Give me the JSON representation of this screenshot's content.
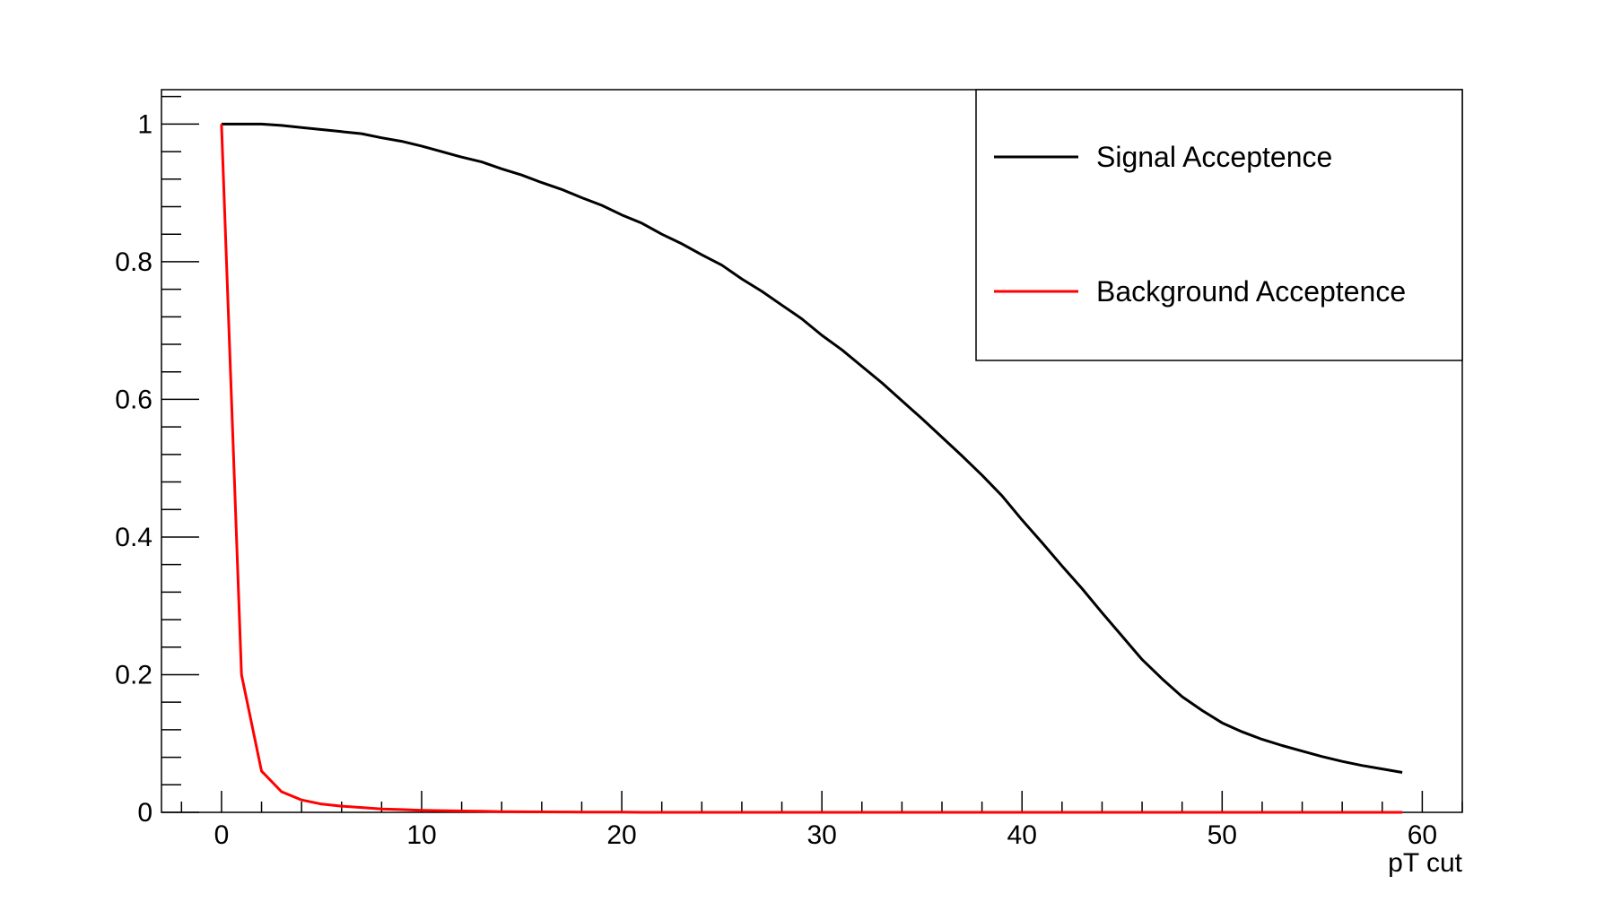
{
  "chart_data": {
    "type": "line",
    "title": "",
    "xlabel": "pT cut",
    "ylabel": "",
    "xlim": [
      -3,
      62
    ],
    "ylim": [
      0,
      1.05
    ],
    "grid": false,
    "legend_position": "top-right",
    "x_ticks": [
      "0",
      "10",
      "20",
      "30",
      "40",
      "50",
      "60"
    ],
    "y_ticks": [
      "0",
      "0.2",
      "0.4",
      "0.6",
      "0.8",
      "1"
    ],
    "x": [
      0,
      1,
      2,
      3,
      4,
      5,
      6,
      7,
      8,
      9,
      10,
      11,
      12,
      13,
      14,
      15,
      16,
      17,
      18,
      19,
      20,
      21,
      22,
      23,
      24,
      25,
      26,
      27,
      28,
      29,
      30,
      31,
      32,
      33,
      34,
      35,
      36,
      37,
      38,
      39,
      40,
      41,
      42,
      43,
      44,
      45,
      46,
      47,
      48,
      49,
      50,
      51,
      52,
      53,
      54,
      55,
      56,
      57,
      58,
      59
    ],
    "series": [
      {
        "name": "Signal Acceptence",
        "color": "#000000",
        "values": [
          1.0,
          1.0,
          1.0,
          0.998,
          0.995,
          0.992,
          0.989,
          0.986,
          0.98,
          0.975,
          0.968,
          0.96,
          0.952,
          0.945,
          0.935,
          0.926,
          0.915,
          0.905,
          0.893,
          0.882,
          0.868,
          0.856,
          0.84,
          0.826,
          0.81,
          0.795,
          0.775,
          0.757,
          0.737,
          0.717,
          0.693,
          0.672,
          0.648,
          0.624,
          0.598,
          0.572,
          0.545,
          0.518,
          0.49,
          0.46,
          0.425,
          0.392,
          0.358,
          0.325,
          0.29,
          0.256,
          0.222,
          0.194,
          0.168,
          0.148,
          0.13,
          0.117,
          0.106,
          0.097,
          0.089,
          0.081,
          0.074,
          0.068,
          0.063,
          0.058
        ]
      },
      {
        "name": "Background Acceptence",
        "color": "#ff0000",
        "values": [
          1.0,
          0.2,
          0.06,
          0.03,
          0.018,
          0.012,
          0.009,
          0.007,
          0.005,
          0.004,
          0.003,
          0.0025,
          0.002,
          0.0015,
          0.001,
          0.0008,
          0.0006,
          0.0005,
          0.0004,
          0.0003,
          0.0002,
          0,
          0,
          0,
          0,
          0,
          0,
          0,
          0,
          0,
          0,
          0,
          0,
          0,
          0,
          0,
          0,
          0,
          0,
          0,
          0,
          0,
          0,
          0,
          0,
          0,
          0,
          0,
          0,
          0,
          0,
          0,
          0,
          0,
          0,
          0,
          0,
          0,
          0,
          0
        ]
      }
    ]
  }
}
